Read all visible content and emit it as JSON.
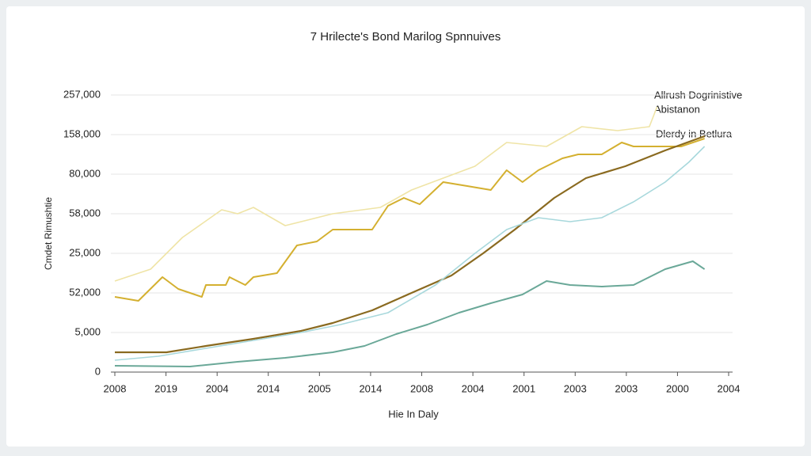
{
  "chart_data": {
    "type": "line",
    "title": "7 Hrilecte's Bond Marilog Spnnuives",
    "ylabel": "Cmdet Rimushtie",
    "xlabel": "Hie In Daly",
    "annotations": [
      "Allrush Dogrinistive",
      "Abistanon",
      "Dlerdy in Betlura"
    ],
    "grid": true,
    "xlim": [
      0,
      12
    ],
    "xticks": [
      {
        "value": 0,
        "label": "2008"
      },
      {
        "value": 1,
        "label": "2019"
      },
      {
        "value": 2,
        "label": "2004"
      },
      {
        "value": 3,
        "label": "2014"
      },
      {
        "value": 4,
        "label": "2005"
      },
      {
        "value": 5,
        "label": "2014"
      },
      {
        "value": 6,
        "label": "2008"
      },
      {
        "value": 7,
        "label": "2004"
      },
      {
        "value": 8,
        "label": "2001"
      },
      {
        "value": 9,
        "label": "2003"
      },
      {
        "value": 10,
        "label": "2003"
      },
      {
        "value": 11,
        "label": "2000"
      },
      {
        "value": 12,
        "label": "2004"
      }
    ],
    "ylim": [
      0,
      7
    ],
    "yticks": [
      {
        "value": 0,
        "label": "0"
      },
      {
        "value": 1,
        "label": "5,000"
      },
      {
        "value": 2,
        "label": "52,000"
      },
      {
        "value": 3,
        "label": "25,000"
      },
      {
        "value": 4,
        "label": "58,000"
      },
      {
        "value": 5,
        "label": "80,000"
      },
      {
        "value": 6,
        "label": "158,000"
      },
      {
        "value": 7,
        "label": "257,000"
      }
    ],
    "series": [
      {
        "color": "#efe4a6",
        "width": 1.6,
        "x": [
          0,
          0.7,
          1.32,
          2.09,
          2.4,
          2.71,
          3.33,
          4.26,
          5.19,
          5.8,
          6.42,
          7.04,
          7.66,
          8.44,
          9.13,
          9.83,
          10.45,
          10.6
        ],
        "values": [
          2.3,
          2.6,
          3.4,
          4.1,
          4.0,
          4.16,
          3.7,
          4.0,
          4.16,
          4.6,
          4.9,
          5.2,
          5.8,
          5.7,
          6.2,
          6.1,
          6.2,
          6.7
        ]
      },
      {
        "color": "#d4b030",
        "width": 2,
        "x": [
          0,
          0.46,
          0.93,
          1.24,
          1.7,
          1.78,
          2.17,
          2.24,
          2.55,
          2.71,
          3.17,
          3.56,
          3.95,
          4.26,
          4.41,
          5.03,
          5.34,
          5.65,
          5.96,
          6.42,
          6.89,
          7.35,
          7.66,
          7.97,
          8.28,
          8.75,
          9.06,
          9.52,
          9.91,
          10.14,
          10.6,
          11.07,
          11.53
        ],
        "values": [
          1.9,
          1.8,
          2.4,
          2.1,
          1.9,
          2.2,
          2.2,
          2.4,
          2.2,
          2.4,
          2.5,
          3.2,
          3.3,
          3.6,
          3.6,
          3.6,
          4.2,
          4.4,
          4.24,
          4.8,
          4.7,
          4.6,
          5.1,
          4.8,
          5.1,
          5.4,
          5.5,
          5.5,
          5.8,
          5.7,
          5.7,
          5.7,
          5.9
        ]
      },
      {
        "color": "#8a6a20",
        "width": 2.2,
        "x": [
          0,
          1.01,
          1.78,
          2.71,
          3.64,
          4.26,
          5.03,
          5.8,
          6.58,
          7.2,
          7.82,
          8.59,
          9.21,
          9.98,
          10.76,
          11.53
        ],
        "values": [
          0.5,
          0.5,
          0.66,
          0.84,
          1.04,
          1.24,
          1.56,
          2.0,
          2.44,
          3.0,
          3.6,
          4.4,
          4.9,
          5.2,
          5.6,
          5.96
        ]
      },
      {
        "color": "#a8d8dc",
        "width": 1.6,
        "x": [
          0,
          0.85,
          1.78,
          2.71,
          3.64,
          4.41,
          5.34,
          6.27,
          7.04,
          7.66,
          8.28,
          8.9,
          9.52,
          10.14,
          10.76,
          11.22,
          11.53
        ],
        "values": [
          0.3,
          0.4,
          0.6,
          0.8,
          1.0,
          1.2,
          1.5,
          2.2,
          3.0,
          3.6,
          3.9,
          3.8,
          3.9,
          4.3,
          4.8,
          5.3,
          5.7
        ]
      },
      {
        "color": "#6aa898",
        "width": 2,
        "x": [
          0,
          1.47,
          2.4,
          3.33,
          4.26,
          4.88,
          5.5,
          6.11,
          6.73,
          7.35,
          7.97,
          8.44,
          8.9,
          9.52,
          10.14,
          10.76,
          11.3,
          11.53
        ],
        "values": [
          0.16,
          0.14,
          0.26,
          0.36,
          0.5,
          0.66,
          0.96,
          1.2,
          1.5,
          1.74,
          1.96,
          2.3,
          2.2,
          2.16,
          2.2,
          2.6,
          2.8,
          2.6
        ]
      }
    ]
  }
}
